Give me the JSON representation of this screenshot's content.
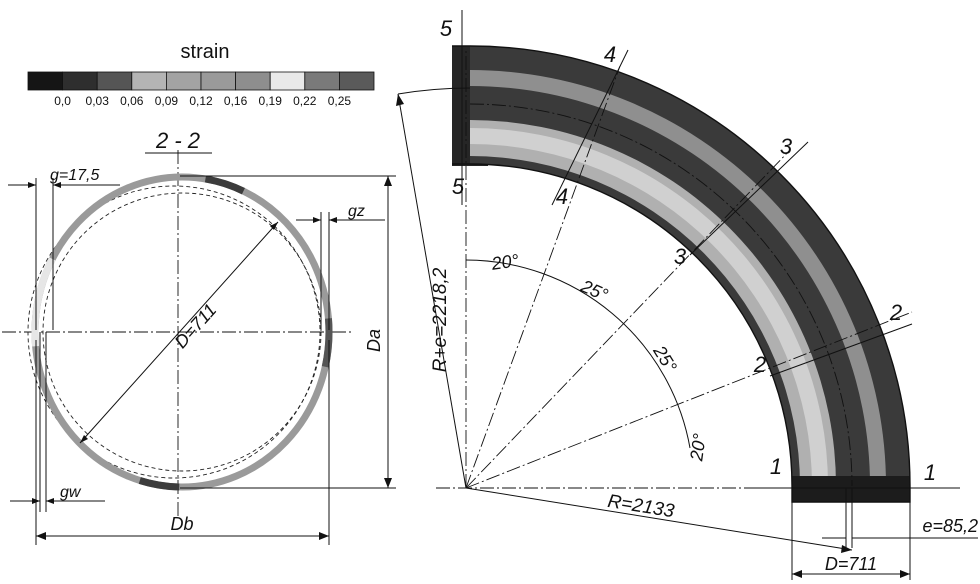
{
  "legend": {
    "title": "strain",
    "ticks": [
      "0,0",
      "0,03",
      "0,06",
      "0,09",
      "0,12",
      "0,16",
      "0,19",
      "0,22",
      "0,25"
    ],
    "colors": [
      "#151515",
      "#2e2e2e",
      "#555555",
      "#b4b4b4",
      "#a3a3a3",
      "#9a9a9a",
      "#8e8e8e",
      "#e9e9e9",
      "#7a7a7a",
      "#5a5a5a"
    ]
  },
  "section": {
    "title": "2 - 2",
    "g_label": "g=17,5",
    "gz_label": "gz",
    "gw_label": "gw",
    "diameter_label": "D=711",
    "da_label": "Da",
    "db_label": "Db"
  },
  "bend": {
    "radius_label": "R=2133",
    "outer_radius_label": "R+e=2218,2",
    "offset_label": "e=85,2",
    "diameter_label": "D=711",
    "angles": [
      "20°",
      "25°",
      "25°",
      "20°"
    ],
    "sections": [
      {
        "label": "1"
      },
      {
        "label": "2"
      },
      {
        "label": "3"
      },
      {
        "label": "4"
      },
      {
        "label": "5"
      }
    ]
  }
}
